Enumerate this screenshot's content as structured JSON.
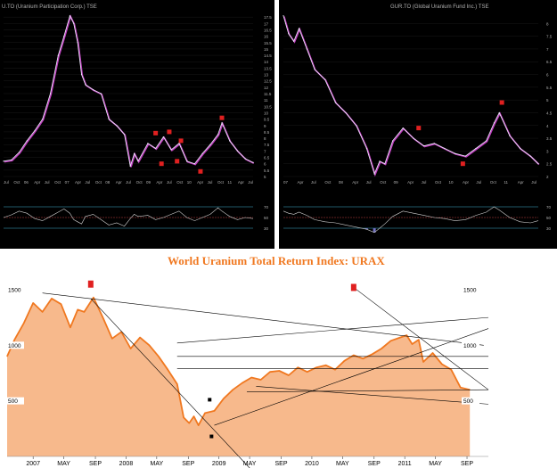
{
  "colors": {
    "dark_bg": "#000000",
    "price_line": "#f0f0ff",
    "price_shadow": "#c040c0",
    "rsi_line": "#d0d0d0",
    "rsi_fill": "#7070c0",
    "rsi_level": "#40b0d0",
    "rsi_mid": "#c04040",
    "marker": "#e02020",
    "area_fill": "#f7b98c",
    "area_line": "#f07820",
    "title": "#f07820",
    "trend": "#000000",
    "axis_text_light": "#b0b0b0"
  },
  "chart_data": [
    {
      "type": "line",
      "id": "u-to",
      "title": "U.TO (Uranium Participation Corp.) TSE",
      "ylim": [
        5,
        18
      ],
      "y_ticks": [
        17.5,
        17,
        16.5,
        16,
        15.5,
        15,
        14.5,
        14,
        13.5,
        13,
        12.5,
        12,
        11.5,
        11,
        10.5,
        10,
        9.5,
        9,
        8.5,
        8,
        7.5,
        7,
        6.5,
        6,
        5.5,
        5
      ],
      "x_ticks": [
        "Jul",
        "Oct",
        "06",
        "Apr",
        "Jul",
        "Oct",
        "07",
        "Apr",
        "Jul",
        "Oct",
        "08",
        "Apr",
        "Jul",
        "Oct",
        "09",
        "Apr",
        "Jul",
        "Oct",
        "10",
        "Apr",
        "Jul",
        "Oct",
        "11",
        "Apr",
        "Jul"
      ],
      "x": [
        2005.5,
        2005.7,
        2005.9,
        2006.1,
        2006.3,
        2006.5,
        2006.7,
        2006.9,
        2007.05,
        2007.2,
        2007.3,
        2007.4,
        2007.5,
        2007.6,
        2007.8,
        2008.0,
        2008.2,
        2008.4,
        2008.6,
        2008.75,
        2008.85,
        2008.95,
        2009.2,
        2009.4,
        2009.6,
        2009.8,
        2010.0,
        2010.2,
        2010.4,
        2010.6,
        2010.8,
        2011.0,
        2011.1,
        2011.3,
        2011.5,
        2011.7,
        2011.9
      ],
      "values": [
        6.2,
        6.3,
        6.9,
        7.8,
        8.6,
        9.5,
        11.5,
        14.5,
        16.0,
        17.6,
        17.0,
        15.5,
        13.0,
        12.2,
        11.8,
        11.5,
        9.5,
        9.0,
        8.3,
        5.8,
        6.8,
        6.2,
        7.6,
        7.2,
        8.1,
        7.1,
        7.6,
        6.2,
        6.0,
        6.8,
        7.5,
        8.3,
        9.2,
        7.8,
        7.0,
        6.4,
        6.1
      ],
      "markers": [
        {
          "x": 2009.4,
          "y": 8.4
        },
        {
          "x": 2009.55,
          "y": 6.0
        },
        {
          "x": 2009.75,
          "y": 8.5
        },
        {
          "x": 2009.95,
          "y": 6.2
        },
        {
          "x": 2010.05,
          "y": 7.8
        },
        {
          "x": 2010.55,
          "y": 5.4
        },
        {
          "x": 2011.1,
          "y": 9.6
        }
      ],
      "rsi": [
        50,
        55,
        62,
        58,
        48,
        44,
        52,
        60,
        66,
        58,
        46,
        42,
        38,
        52,
        56,
        46,
        36,
        40,
        34,
        48,
        56,
        52,
        54,
        46,
        50,
        56,
        62,
        50,
        44,
        50,
        56,
        68,
        62,
        52,
        46,
        50,
        48
      ],
      "rsi_levels": [
        70,
        50,
        30
      ]
    },
    {
      "type": "line",
      "id": "gur-to",
      "title": "GUR.TO (Global Uranium Fund Inc.) TSE",
      "ylim": [
        2,
        8.5
      ],
      "y_ticks": [
        8,
        7.5,
        7,
        6.5,
        6,
        5.5,
        5,
        4.5,
        4,
        3.5,
        3,
        2.5,
        2
      ],
      "x_ticks": [
        "07",
        "Apr",
        "Jul",
        "Oct",
        "08",
        "Apr",
        "Jul",
        "Oct",
        "09",
        "Apr",
        "Jul",
        "Oct",
        "10",
        "Apr",
        "Jul",
        "Oct",
        "11",
        "Apr",
        "Jul"
      ],
      "x": [
        2007.0,
        2007.1,
        2007.2,
        2007.3,
        2007.45,
        2007.6,
        2007.8,
        2008.0,
        2008.2,
        2008.4,
        2008.6,
        2008.75,
        2008.85,
        2008.95,
        2009.1,
        2009.3,
        2009.5,
        2009.7,
        2009.9,
        2010.1,
        2010.3,
        2010.5,
        2010.7,
        2010.9,
        2011.05,
        2011.15,
        2011.35,
        2011.55,
        2011.75,
        2011.9
      ],
      "values": [
        8.3,
        7.6,
        7.3,
        7.8,
        7.0,
        6.2,
        5.8,
        4.9,
        4.5,
        4.0,
        3.1,
        2.1,
        2.6,
        2.5,
        3.4,
        3.9,
        3.5,
        3.2,
        3.3,
        3.1,
        2.9,
        2.8,
        3.1,
        3.4,
        4.1,
        4.5,
        3.6,
        3.1,
        2.8,
        2.5
      ],
      "markers": [
        {
          "x": 2009.6,
          "y": 3.9
        },
        {
          "x": 2010.45,
          "y": 2.5
        },
        {
          "x": 2011.2,
          "y": 4.9
        }
      ],
      "rsi": [
        62,
        58,
        56,
        60,
        54,
        46,
        42,
        40,
        36,
        32,
        28,
        22,
        30,
        38,
        52,
        62,
        58,
        54,
        50,
        48,
        44,
        46,
        54,
        60,
        70,
        64,
        50,
        42,
        40,
        44
      ],
      "rsi_levels": [
        70,
        50,
        30
      ]
    },
    {
      "type": "area",
      "id": "urax",
      "title": "World Uranium Total Return Index: URAX",
      "ylim": [
        0,
        1700
      ],
      "y_ticks": [
        1500,
        1000,
        500
      ],
      "x_ticks": [
        {
          "label": "2007",
          "x": 2007.0
        },
        {
          "label": "MAY",
          "x": 2007.33
        },
        {
          "label": "SEP",
          "x": 2007.67
        },
        {
          "label": "2008",
          "x": 2008.0
        },
        {
          "label": "MAY",
          "x": 2008.33
        },
        {
          "label": "SEP",
          "x": 2008.67
        },
        {
          "label": "2009",
          "x": 2009.0
        },
        {
          "label": "MAY",
          "x": 2009.33
        },
        {
          "label": "SEP",
          "x": 2009.67
        },
        {
          "label": "2010",
          "x": 2010.0
        },
        {
          "label": "MAY",
          "x": 2010.33
        },
        {
          "label": "SEP",
          "x": 2010.67
        },
        {
          "label": "2011",
          "x": 2011.0
        },
        {
          "label": "MAY",
          "x": 2011.33
        },
        {
          "label": "SEP",
          "x": 2011.67
        }
      ],
      "x": [
        2006.72,
        2006.8,
        2006.9,
        2007.0,
        2007.1,
        2007.2,
        2007.3,
        2007.4,
        2007.48,
        2007.55,
        2007.65,
        2007.75,
        2007.85,
        2007.95,
        2008.05,
        2008.15,
        2008.25,
        2008.35,
        2008.45,
        2008.55,
        2008.62,
        2008.68,
        2008.73,
        2008.78,
        2008.85,
        2008.95,
        2009.05,
        2009.15,
        2009.25,
        2009.35,
        2009.45,
        2009.55,
        2009.65,
        2009.75,
        2009.85,
        2009.95,
        2010.05,
        2010.15,
        2010.25,
        2010.35,
        2010.45,
        2010.55,
        2010.65,
        2010.75,
        2010.85,
        2010.95,
        2011.02,
        2011.08,
        2011.15,
        2011.2,
        2011.3,
        2011.4,
        2011.5,
        2011.6,
        2011.7
      ],
      "values": [
        900,
        1050,
        1200,
        1380,
        1300,
        1420,
        1370,
        1160,
        1320,
        1300,
        1430,
        1250,
        1060,
        1120,
        970,
        1070,
        1000,
        900,
        780,
        650,
        350,
        300,
        360,
        280,
        390,
        410,
        520,
        600,
        660,
        710,
        690,
        760,
        770,
        730,
        800,
        760,
        800,
        820,
        780,
        860,
        910,
        880,
        920,
        970,
        1040,
        1070,
        1090,
        1010,
        1050,
        850,
        930,
        830,
        780,
        620,
        600
      ],
      "markers": [
        {
          "x": 2007.62,
          "y": 1550
        },
        {
          "x": 2010.45,
          "y": 1520
        }
      ],
      "trendlines": [
        {
          "from": {
            "x": 2007.1,
            "y": 1470
          },
          "to": {
            "x": 2011.85,
            "y": 1000
          }
        },
        {
          "from": {
            "x": 2007.62,
            "y": 1420
          },
          "to": {
            "x": 2009.55,
            "y": -300
          }
        },
        {
          "from": {
            "x": 2010.45,
            "y": 1520
          },
          "to": {
            "x": 2011.9,
            "y": 600
          }
        },
        {
          "from": {
            "x": 2008.55,
            "y": 1020
          },
          "to": {
            "x": 2011.9,
            "y": 1250
          }
        },
        {
          "from": {
            "x": 2008.55,
            "y": 900
          },
          "to": {
            "x": 2011.9,
            "y": 900
          }
        },
        {
          "from": {
            "x": 2008.55,
            "y": 790
          },
          "to": {
            "x": 2011.9,
            "y": 790
          }
        },
        {
          "from": {
            "x": 2008.95,
            "y": 280
          },
          "to": {
            "x": 2011.9,
            "y": 1150
          }
        },
        {
          "from": {
            "x": 2009.3,
            "y": 580
          },
          "to": {
            "x": 2011.9,
            "y": 600
          }
        },
        {
          "from": {
            "x": 2009.4,
            "y": 630
          },
          "to": {
            "x": 2011.9,
            "y": 470
          }
        }
      ],
      "points": [
        {
          "x": 2008.9,
          "y": 510
        },
        {
          "x": 2008.92,
          "y": 180
        }
      ]
    }
  ]
}
